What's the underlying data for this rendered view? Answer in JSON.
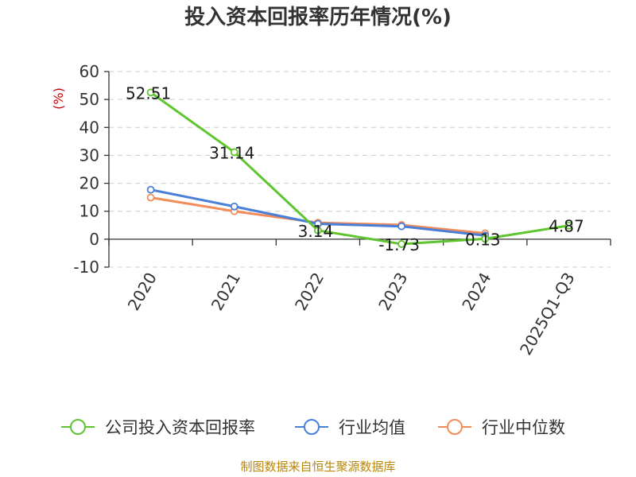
{
  "title": "投入资本回报率历年情况(%)",
  "source_note": "制图数据来自恒生聚源数据库",
  "colors": {
    "company": "#5ec52e",
    "industry_avg": "#4a7fd8",
    "industry_median": "#f28c5a",
    "unit_label": "#cc0000",
    "source_note": "#b8860b",
    "grid": "#cccccc",
    "axis": "#333333"
  },
  "chart_data": {
    "type": "line",
    "title": "投入资本回报率历年情况(%)",
    "ylabel": "(%)",
    "xlabel": "",
    "categories": [
      "2020",
      "2021",
      "2022",
      "2023",
      "2024",
      "2025Q1-Q3"
    ],
    "ylim": [
      -10,
      60
    ],
    "yticks": [
      -10,
      0,
      10,
      20,
      30,
      40,
      50,
      60
    ],
    "grid": "horizontal dashed",
    "legend_position": "bottom",
    "series": [
      {
        "name": "公司投入资本回报率",
        "color": "#5ec52e",
        "values": [
          52.51,
          31.14,
          3.14,
          -1.73,
          0.13,
          4.87
        ],
        "labels": [
          "52.51",
          "31.14",
          "3.14",
          "-1.73",
          "0.13",
          "4.87"
        ]
      },
      {
        "name": "行业均值",
        "color": "#4a7fd8",
        "values": [
          17.7,
          11.7,
          5.5,
          4.6,
          1.3,
          null
        ]
      },
      {
        "name": "行业中位数",
        "color": "#f28c5a",
        "values": [
          14.9,
          10.0,
          5.9,
          5.1,
          2.1,
          null
        ]
      }
    ]
  }
}
